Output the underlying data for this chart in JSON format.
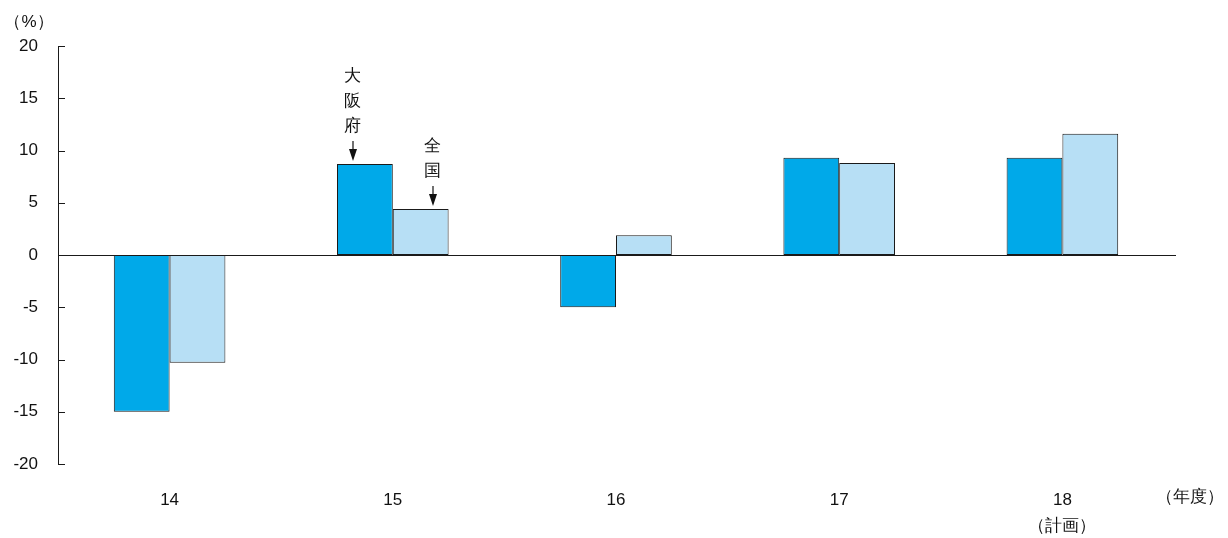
{
  "chart_data": {
    "type": "bar",
    "xlabel": "（年度）",
    "ylabel": "（%）",
    "categories": [
      "14",
      "15",
      "16",
      "17",
      "18\n（計画）"
    ],
    "series": [
      {
        "name": "大阪府",
        "color": "#00a9e9",
        "values": [
          -15.0,
          8.7,
          -5.0,
          9.3,
          9.3
        ]
      },
      {
        "name": "全国",
        "color": "#b7dff5",
        "values": [
          -10.3,
          4.4,
          1.9,
          8.8,
          11.6
        ]
      }
    ],
    "ylim": [
      -20,
      20
    ],
    "yticks": [
      -20,
      -15,
      -10,
      -5,
      0,
      5,
      10,
      15,
      20
    ]
  }
}
